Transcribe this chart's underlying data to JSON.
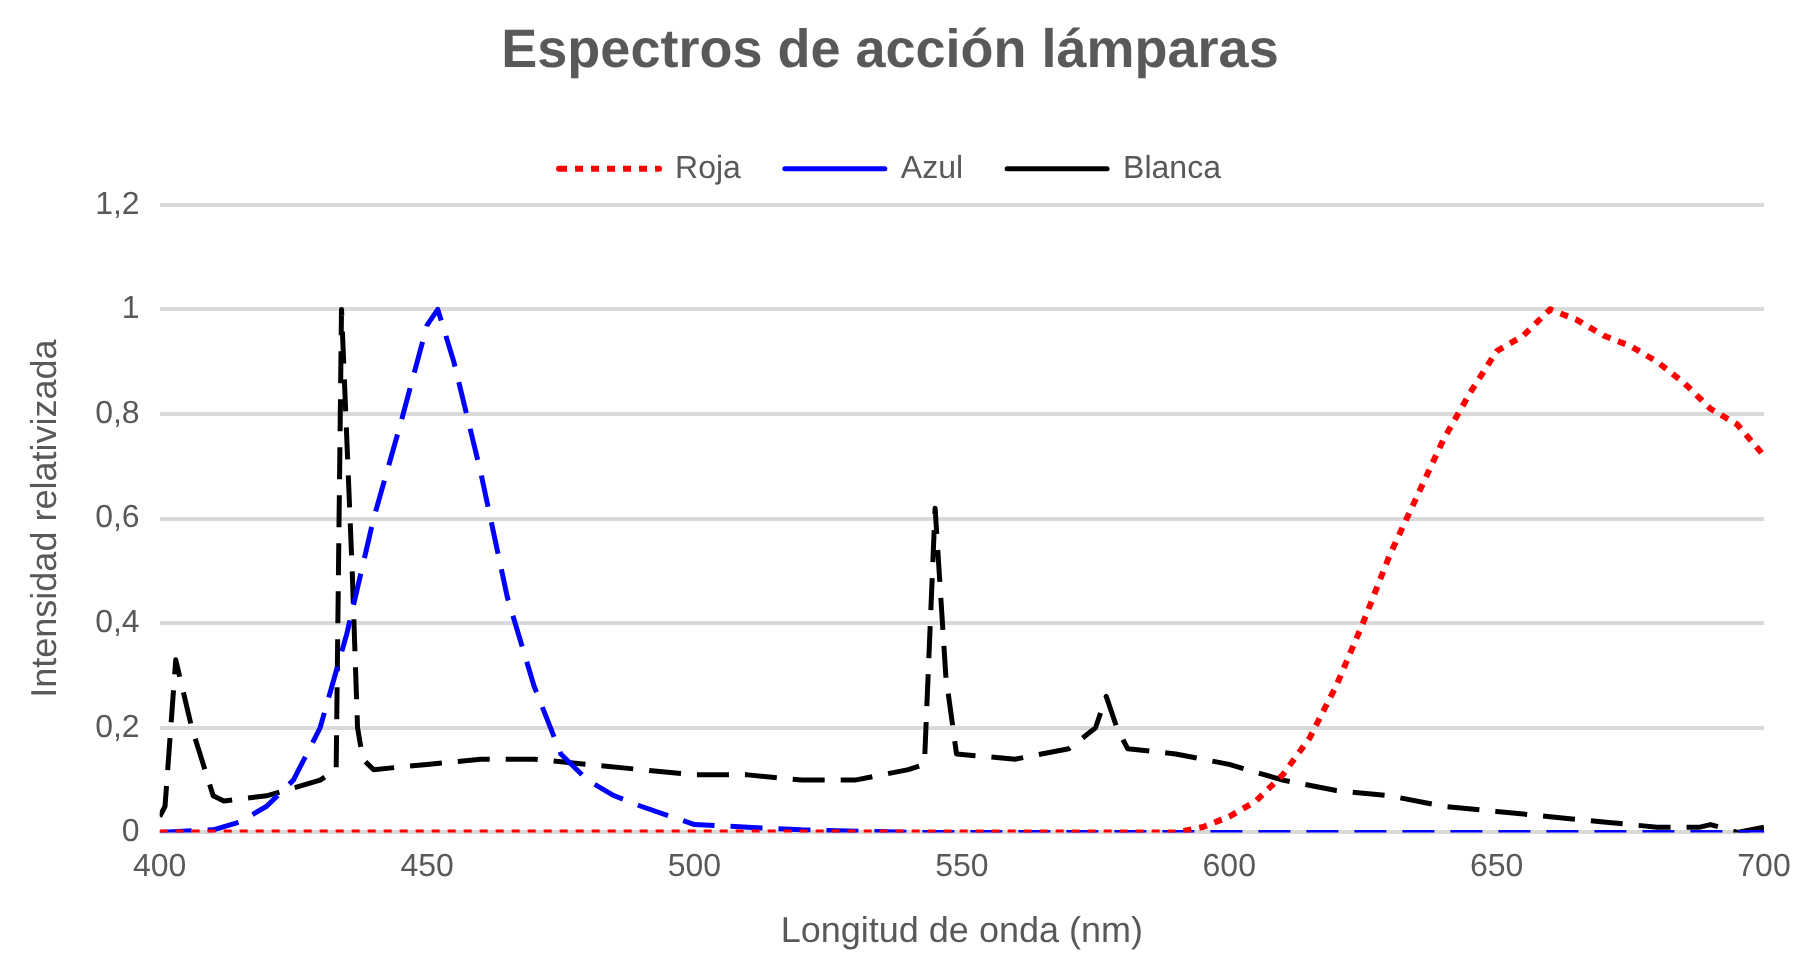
{
  "chart_data": {
    "type": "line",
    "title": "Espectros de acción lámparas",
    "xlabel": "Longitud de onda (nm)",
    "ylabel": "Intensidad relativizada",
    "xlim": [
      400,
      700
    ],
    "xticks": [
      400,
      450,
      500,
      550,
      600,
      650,
      700
    ],
    "ylim": [
      0,
      1.2
    ],
    "yticks": [
      0,
      {
        "value": 0.2,
        "label": "0,2"
      },
      {
        "value": 0.4,
        "label": "0,4"
      },
      {
        "value": 0.6,
        "label": "0,6"
      },
      {
        "value": 0.8,
        "label": "0,8"
      },
      1,
      {
        "value": 1.2,
        "label": "1,2"
      }
    ],
    "grid": "y",
    "legend": "top",
    "marker": "none",
    "series": [
      {
        "name": "Roja",
        "color": "#ff0000",
        "line_style": "dotted",
        "x": [
          400,
          450,
          500,
          550,
          590,
          595,
          600,
          605,
          610,
          615,
          620,
          625,
          630,
          635,
          640,
          645,
          650,
          655,
          660,
          665,
          670,
          675,
          680,
          685,
          690,
          695,
          700
        ],
        "values": [
          0,
          0,
          0,
          0,
          0,
          0.01,
          0.03,
          0.06,
          0.11,
          0.18,
          0.28,
          0.4,
          0.53,
          0.64,
          0.75,
          0.84,
          0.92,
          0.95,
          1.0,
          0.98,
          0.95,
          0.93,
          0.9,
          0.86,
          0.81,
          0.78,
          0.72
        ]
      },
      {
        "name": "Azul",
        "color": "#0000ff",
        "line_style": "dashed",
        "x": [
          400,
          410,
          415,
          420,
          425,
          430,
          435,
          440,
          445,
          450,
          452,
          455,
          460,
          465,
          470,
          475,
          480,
          485,
          490,
          500,
          510,
          520,
          540,
          600,
          700
        ],
        "values": [
          0,
          0.005,
          0.02,
          0.05,
          0.1,
          0.2,
          0.38,
          0.6,
          0.78,
          0.97,
          1.0,
          0.9,
          0.69,
          0.45,
          0.28,
          0.15,
          0.1,
          0.07,
          0.05,
          0.015,
          0.01,
          0.005,
          0,
          0,
          0
        ]
      },
      {
        "name": "Blanca",
        "color": "#000000",
        "line_style": "dashed",
        "x": [
          400,
          401,
          403,
          406,
          410,
          412,
          420,
          430,
          433,
          434,
          436,
          437,
          438,
          440,
          450,
          460,
          470,
          480,
          490,
          500,
          510,
          520,
          530,
          540,
          543,
          545,
          547,
          549,
          560,
          570,
          575,
          577,
          579,
          581,
          590,
          600,
          610,
          620,
          630,
          640,
          650,
          660,
          670,
          680,
          688,
          690,
          695,
          700
        ],
        "values": [
          0.03,
          0.05,
          0.33,
          0.2,
          0.07,
          0.06,
          0.07,
          0.1,
          0.12,
          1.0,
          0.5,
          0.2,
          0.14,
          0.12,
          0.13,
          0.14,
          0.14,
          0.13,
          0.12,
          0.11,
          0.11,
          0.1,
          0.1,
          0.12,
          0.13,
          0.62,
          0.3,
          0.15,
          0.14,
          0.16,
          0.2,
          0.26,
          0.2,
          0.16,
          0.15,
          0.13,
          0.1,
          0.08,
          0.07,
          0.05,
          0.04,
          0.03,
          0.02,
          0.01,
          0.01,
          0.015,
          0,
          0.01
        ]
      }
    ]
  }
}
